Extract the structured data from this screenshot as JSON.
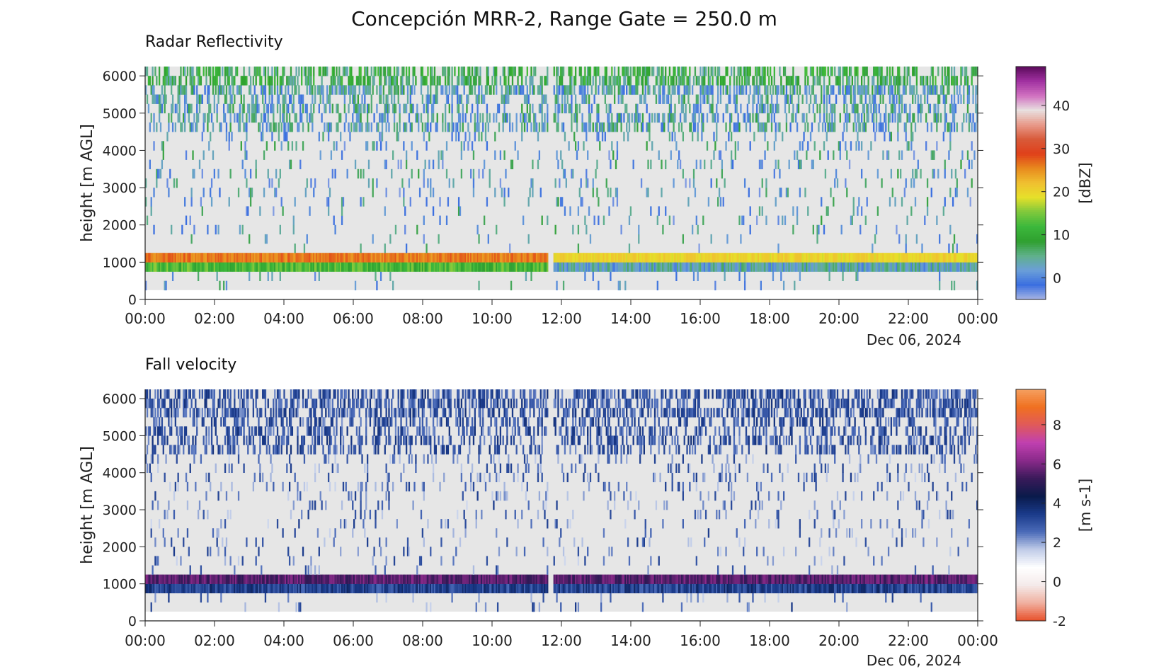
{
  "figure": {
    "title": "Concepción MRR-2, Range Gate = 250.0 m"
  },
  "chart_data": [
    {
      "type": "heatmap",
      "title": "Radar Reflectivity",
      "ylabel": "height [m AGL]",
      "xlabel": "Dec 06, 2024",
      "x_ticks": [
        "00:00",
        "02:00",
        "04:00",
        "06:00",
        "08:00",
        "10:00",
        "12:00",
        "14:00",
        "16:00",
        "18:00",
        "20:00",
        "22:00",
        "00:00"
      ],
      "x_range_hours": [
        0,
        24
      ],
      "y_ticks": [
        0,
        1000,
        2000,
        3000,
        4000,
        5000,
        6000
      ],
      "y_range": [
        0,
        6250
      ],
      "colorbar": {
        "label": "[dBZ]",
        "ticks": [
          0,
          10,
          20,
          30,
          40
        ],
        "range": [
          -5,
          49
        ],
        "colors": [
          "#a6b4e3",
          "#3b6fe0",
          "#6b9fd8",
          "#5fb08a",
          "#2fa02f",
          "#3cb83c",
          "#7ec83c",
          "#e6e02a",
          "#f0c030",
          "#e88a1e",
          "#e0401a",
          "#d85a3a",
          "#e89a8a",
          "#e8e0e0",
          "#d070c0",
          "#a030a0",
          "#5a0a5a"
        ]
      },
      "data_gap_hours": [
        11.6,
        11.75
      ],
      "layers": [
        {
          "name": "melting layer",
          "height_m": [
            1000,
            1250
          ],
          "value_dBZ_before_gap": 26,
          "value_dBZ_after_gap": 20
        },
        {
          "name": "rain below melting layer",
          "height_m": [
            750,
            1000
          ],
          "value_dBZ_before_gap": 12,
          "value_dBZ_after_gap": 3
        },
        {
          "name": "near-surface echoes",
          "height_m": [
            250,
            750
          ],
          "value_dBZ": 2
        },
        {
          "name": "upper-level echoes",
          "height_m": [
            4500,
            6250
          ],
          "value_dBZ": 5
        },
        {
          "name": "sparse echoes",
          "height_m": [
            1250,
            4500
          ],
          "value_dBZ": 2
        }
      ],
      "no_signal_value": "light gray"
    },
    {
      "type": "heatmap",
      "title": "Fall velocity",
      "ylabel": "height [m AGL]",
      "xlabel": "Dec 06, 2024",
      "x_ticks": [
        "00:00",
        "02:00",
        "04:00",
        "06:00",
        "08:00",
        "10:00",
        "12:00",
        "14:00",
        "16:00",
        "18:00",
        "20:00",
        "22:00",
        "00:00"
      ],
      "x_range_hours": [
        0,
        24
      ],
      "y_ticks": [
        0,
        1000,
        2000,
        3000,
        4000,
        5000,
        6000
      ],
      "y_range": [
        0,
        6250
      ],
      "colorbar": {
        "label": "[m s-1]",
        "ticks": [
          -2,
          0,
          2,
          4,
          6,
          8
        ],
        "range": [
          -2,
          9.8
        ],
        "colors": [
          "#e8502a",
          "#f0b0a0",
          "#f4eaea",
          "#ffffff",
          "#c0cce8",
          "#4a6ab8",
          "#1a3a8a",
          "#0a1a4a",
          "#3a1a5a",
          "#8a2a8a",
          "#c040b0",
          "#e05a5a",
          "#f07020",
          "#f5a060"
        ]
      },
      "data_gap_hours": [
        11.6,
        11.75
      ],
      "layers": [
        {
          "name": "melting layer",
          "height_m": [
            1000,
            1250
          ],
          "value_ms": 5.6
        },
        {
          "name": "rain below melting layer",
          "height_m": [
            750,
            1000
          ],
          "value_ms": 3.3
        },
        {
          "name": "near-surface echoes",
          "height_m": [
            250,
            750
          ],
          "value_ms": 2.5
        },
        {
          "name": "upper-level echoes",
          "height_m": [
            4500,
            6250
          ],
          "value_ms": 2.8
        },
        {
          "name": "sparse echoes",
          "height_m": [
            1250,
            4500
          ],
          "value_ms": 2.3
        }
      ],
      "no_signal_value": "light gray"
    }
  ]
}
